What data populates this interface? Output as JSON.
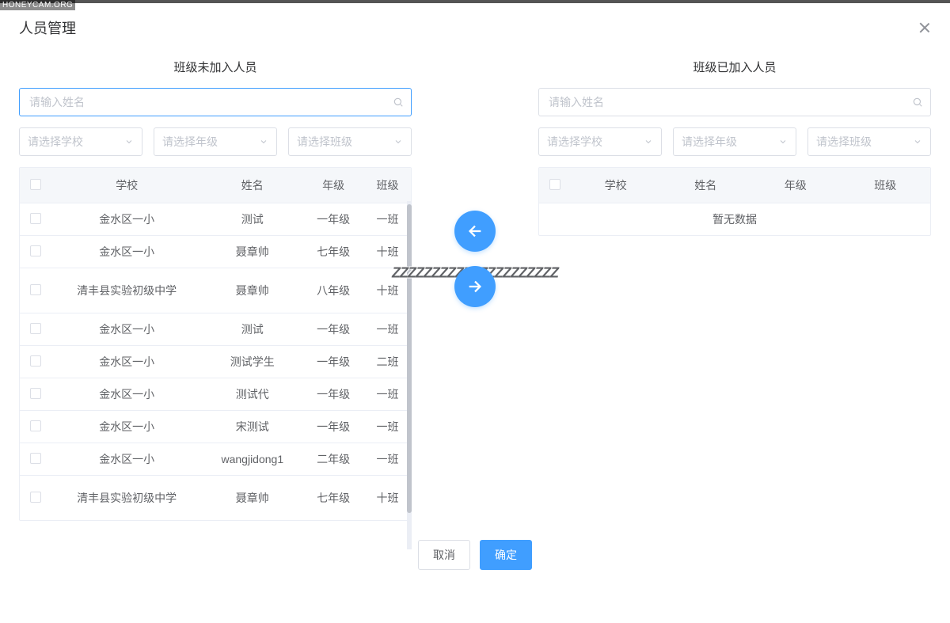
{
  "watermark_top": "HONEYCAM.ORG",
  "watermark_mid": "ZZZZZZZZZZZZZZZZZZZZZ",
  "modal": {
    "title": "人员管理",
    "close_tooltip": "关闭"
  },
  "colors": {
    "primary": "#409eff",
    "border": "#dcdfe6",
    "header_bg": "#f5f7fa",
    "placeholder": "#c0c4cc",
    "text": "#606266"
  },
  "left": {
    "title": "班级未加入人员",
    "search_placeholder": "请输入姓名",
    "filters": {
      "school": "请选择学校",
      "grade": "请选择年级",
      "class": "请选择班级"
    },
    "columns": [
      "学校",
      "姓名",
      "年级",
      "班级"
    ],
    "rows": [
      {
        "school": "金水区一小",
        "name": "测试",
        "grade": "一年级",
        "class": "一班",
        "tall": false
      },
      {
        "school": "金水区一小",
        "name": "聂章帅",
        "grade": "七年级",
        "class": "十班",
        "tall": false
      },
      {
        "school": "清丰县实验初级中学",
        "name": "聂章帅",
        "grade": "八年级",
        "class": "十班",
        "tall": true
      },
      {
        "school": "金水区一小",
        "name": "测试",
        "grade": "一年级",
        "class": "一班",
        "tall": false
      },
      {
        "school": "金水区一小",
        "name": "测试学生",
        "grade": "一年级",
        "class": "二班",
        "tall": false
      },
      {
        "school": "金水区一小",
        "name": "测试代",
        "grade": "一年级",
        "class": "一班",
        "tall": false
      },
      {
        "school": "金水区一小",
        "name": "宋测试",
        "grade": "一年级",
        "class": "一班",
        "tall": false
      },
      {
        "school": "金水区一小",
        "name": "wangjidong1",
        "grade": "二年级",
        "class": "一班",
        "tall": false
      },
      {
        "school": "清丰县实验初级中学",
        "name": "聂章帅",
        "grade": "七年级",
        "class": "十班",
        "tall": true
      }
    ]
  },
  "right": {
    "title": "班级已加入人员",
    "search_placeholder": "请输入姓名",
    "filters": {
      "school": "请选择学校",
      "grade": "请选择年级",
      "class": "请选择班级"
    },
    "columns": [
      "学校",
      "姓名",
      "年级",
      "班级"
    ],
    "empty_text": "暂无数据"
  },
  "footer": {
    "cancel": "取消",
    "confirm": "确定"
  }
}
